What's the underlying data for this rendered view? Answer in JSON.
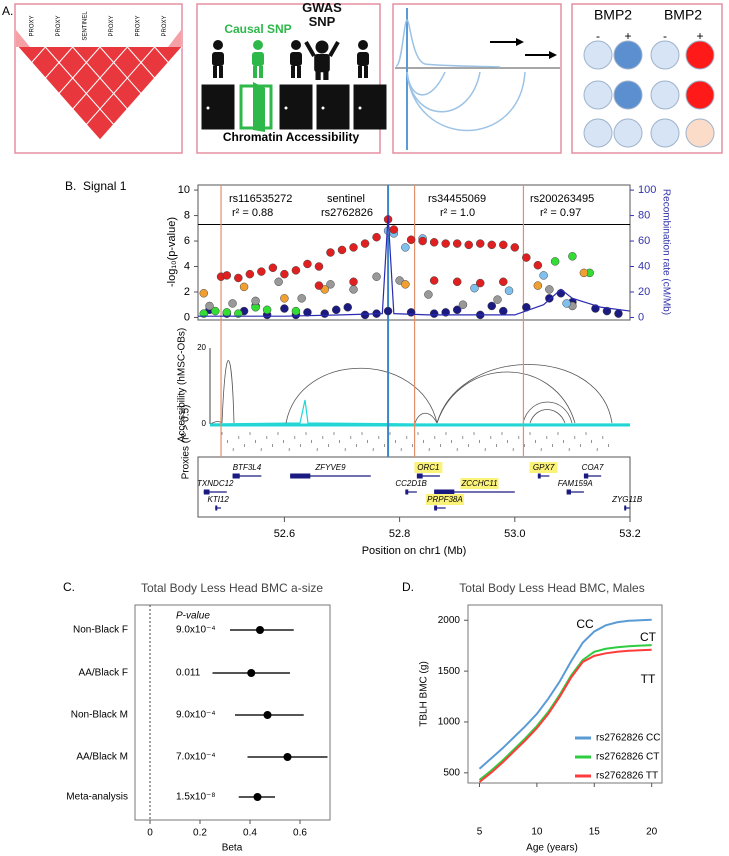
{
  "panel_a": {
    "label": "A.",
    "ld_labels": [
      "PROXY",
      "PROXY",
      "SENTINEL",
      "PROXY",
      "PROXY",
      "PROXY"
    ],
    "causal_snp": "Causal SNP",
    "gwas_snp": "GWAS SNP",
    "chromatin": "Chromatin Accessibility",
    "bmp_labels": [
      "BMP2",
      "BMP2"
    ],
    "signs": [
      "-",
      "+",
      "-",
      "+"
    ]
  },
  "panel_b": {
    "label": "B.",
    "subtitle": "Signal 1"
  },
  "panel_c": {
    "label": "C."
  },
  "panel_d": {
    "label": "D."
  },
  "chart_data": [
    {
      "type": "locus",
      "ylabel": "-log₁₀(p-value)",
      "y2label": "Recombination rate (cM/Mb)",
      "xlabel": "Position on chr1 (Mb)",
      "xlim": [
        52.45,
        53.2
      ],
      "xticks": [
        52.6,
        52.8,
        {
          "value": 53.0,
          "label": "53.0"
        },
        53.2
      ],
      "ylim": [
        -0.2,
        10.4
      ],
      "yticks": [
        0,
        2,
        4,
        6,
        8,
        10
      ],
      "y2lim": [
        -2,
        104
      ],
      "y2ticks": [
        0,
        20,
        40,
        60,
        80,
        100
      ],
      "threshold": 7.3,
      "highlights": [
        {
          "x": 52.49,
          "color": "#e0906a",
          "name": "rs116535272",
          "note": "r² = 0.88"
        },
        {
          "x": 52.78,
          "color": "#3a86c8",
          "name": "rs2762826",
          "note": "sentinel"
        },
        {
          "x": 52.826,
          "color": "#e0906a",
          "name": "rs34455069",
          "note": "r² = 1.0"
        },
        {
          "x": 53.015,
          "color": "#e0906a",
          "name": "rs200263495",
          "note": "r² = 0.97"
        }
      ],
      "series": [
        {
          "color": "#1a1a80",
          "x": [
            52.47,
            52.5,
            52.53,
            52.57,
            52.6,
            52.64,
            52.67,
            52.71,
            52.74,
            52.78,
            52.82,
            52.86,
            52.9,
            52.94,
            52.98,
            53.02,
            53.06,
            53.1,
            53.14,
            53.18,
            52.55,
            52.62,
            52.69,
            52.76,
            52.88,
            52.96,
            53.08,
            53.16
          ],
          "values": [
            0.6,
            0.3,
            0.5,
            0.2,
            0.7,
            0.4,
            0.3,
            0.8,
            0.2,
            0.5,
            0.4,
            0.3,
            0.6,
            0.2,
            0.5,
            0.8,
            1.5,
            1.2,
            0.7,
            0.3,
            0.9,
            0.2,
            0.6,
            0.3,
            0.4,
            0.9,
            1.9,
            0.5
          ]
        },
        {
          "color": "#33dd33",
          "x": [
            52.46,
            52.48,
            52.5,
            52.52,
            52.55,
            52.57,
            52.62,
            53.07,
            53.1,
            53.13
          ],
          "values": [
            0.3,
            0.5,
            0.4,
            0.3,
            0.8,
            0.6,
            0.5,
            4.4,
            4.8,
            3.5
          ]
        },
        {
          "color": "#999999",
          "x": [
            52.47,
            52.51,
            52.55,
            52.59,
            52.63,
            52.68,
            52.72,
            52.76,
            52.8,
            52.85,
            52.91,
            52.97,
            53.06,
            53.1
          ],
          "values": [
            0.9,
            1.1,
            1.3,
            2.8,
            1.5,
            2.6,
            2.2,
            3.2,
            2.9,
            1.8,
            1.0,
            1.4,
            2.2,
            0.9
          ]
        },
        {
          "color": "#80c0ee",
          "x": [
            52.78,
            52.79,
            52.81,
            52.84,
            52.93,
            52.99,
            53.05,
            53.09
          ],
          "values": [
            6.8,
            6.6,
            5.5,
            6.2,
            2.3,
            2.1,
            3.3,
            1.1
          ]
        },
        {
          "color": "#f0a030",
          "x": [
            52.46,
            52.53,
            52.6,
            52.67,
            52.81,
            53.04,
            53.12
          ],
          "values": [
            1.9,
            2.4,
            1.5,
            2.2,
            2.6,
            2.5,
            3.5
          ]
        },
        {
          "color": "#e02020",
          "x": [
            52.49,
            52.5,
            52.52,
            52.54,
            52.56,
            52.58,
            52.6,
            52.62,
            52.64,
            52.66,
            52.68,
            52.7,
            52.72,
            52.74,
            52.76,
            52.78,
            52.79,
            52.82,
            52.84,
            52.86,
            52.88,
            52.9,
            52.92,
            52.94,
            52.96,
            52.98,
            53.0,
            53.02,
            53.04,
            52.86,
            52.9,
            52.94,
            52.98,
            52.72,
            52.66
          ],
          "values": [
            3.2,
            3.3,
            3.1,
            3.4,
            3.6,
            3.9,
            3.4,
            3.7,
            4.2,
            4.0,
            5.1,
            5.3,
            5.5,
            5.8,
            6.3,
            7.7,
            6.9,
            6.1,
            6.0,
            5.9,
            5.8,
            5.8,
            5.7,
            5.8,
            5.7,
            5.7,
            5.5,
            4.7,
            4.1,
            2.9,
            2.8,
            2.7,
            2.8,
            2.8,
            2.5
          ]
        },
        {
          "axis": "y2",
          "color": "#2a2ab0",
          "x": [
            52.45,
            52.6,
            52.7,
            52.77,
            52.78,
            52.79,
            52.85,
            53.0,
            53.05,
            53.08,
            53.1,
            53.15,
            53.2
          ],
          "values": [
            1,
            1,
            2,
            3,
            80,
            3,
            2,
            2,
            10,
            22,
            15,
            8,
            5
          ]
        }
      ],
      "accessibility": {
        "label": "Accessibility (hMSC-OBs)",
        "ylim": [
          0,
          20
        ],
        "yticks": [
          0,
          20
        ]
      },
      "proxies_label": "Proxies (r² > 0.5)",
      "gene_tracks": [
        [
          {
            "name": "BTF3L4",
            "start": 52.51,
            "end": 52.56
          },
          {
            "name": "ZFYVE9",
            "start": 52.61,
            "end": 52.75
          },
          {
            "name": "ORC1",
            "start": 52.83,
            "end": 52.87,
            "highlight": true
          },
          {
            "name": "GPX7",
            "start": 53.04,
            "end": 53.06,
            "highlight": true
          },
          {
            "name": "COA7",
            "start": 53.12,
            "end": 53.15
          }
        ],
        [
          {
            "name": "TXNDC12",
            "start": 52.46,
            "end": 52.5
          },
          {
            "name": "CC2D1B",
            "start": 52.81,
            "end": 52.83
          },
          {
            "name": "ZCCHC11",
            "start": 52.86,
            "end": 53.0,
            "highlight": true
          },
          {
            "name": "FAM159A",
            "start": 53.09,
            "end": 53.12
          }
        ],
        [
          {
            "name": "KTI12",
            "start": 52.48,
            "end": 52.49
          },
          {
            "name": "PRPF38A",
            "start": 52.86,
            "end": 52.88,
            "highlight": true
          },
          {
            "name": "ZYG11B",
            "start": 53.19,
            "end": 53.2
          }
        ]
      ]
    },
    {
      "type": "forest",
      "title": "Total Body Less Head BMC a-size",
      "categories": [
        "Non-Black F",
        "AA/Black F",
        "Non-Black M",
        "AA/Black M",
        "Meta-analysis"
      ],
      "values": [
        0.44,
        0.405,
        0.47,
        0.55,
        0.43
      ],
      "ci_low": [
        0.32,
        0.25,
        0.34,
        0.39,
        0.355
      ],
      "ci_high": [
        0.575,
        0.56,
        0.615,
        0.71,
        0.5
      ],
      "p_header": "P-value",
      "p_values": [
        "9.0x10⁻⁴",
        "0.011",
        "9.0x10⁻⁴",
        "7.0x10⁻⁴",
        "1.5x10⁻⁸"
      ],
      "xlabel": "Beta",
      "xlim": [
        -0.06,
        0.72
      ],
      "xticks": [
        0,
        0.2,
        0.4,
        0.6
      ]
    },
    {
      "type": "line",
      "title": "Total Body Less Head BMC, Males",
      "xlabel": "Age (years)",
      "ylabel": "TBLH BMC (g)",
      "xlim": [
        4,
        20.9
      ],
      "xticks": [
        5,
        10,
        15,
        20
      ],
      "ylim": [
        400,
        2150
      ],
      "yticks": [
        500,
        1000,
        1500,
        2000
      ],
      "x": [
        5,
        6,
        7,
        8,
        9,
        10,
        11,
        12,
        13,
        14,
        15,
        16,
        17,
        18,
        19,
        20
      ],
      "series": [
        {
          "name": "rs2762826 CC",
          "short": "CC",
          "color": "#5b9bd5",
          "values": [
            540,
            640,
            740,
            850,
            960,
            1080,
            1230,
            1400,
            1600,
            1780,
            1890,
            1950,
            1980,
            1995,
            2000,
            2005
          ]
        },
        {
          "name": "rs2762826 CT",
          "short": "CT",
          "color": "#2ecc40",
          "values": [
            430,
            520,
            620,
            730,
            840,
            960,
            1100,
            1270,
            1460,
            1610,
            1690,
            1720,
            1735,
            1745,
            1750,
            1755
          ]
        },
        {
          "name": "rs2762826 TT",
          "short": "TT",
          "color": "#ff3b3b",
          "values": [
            410,
            500,
            600,
            710,
            820,
            940,
            1080,
            1250,
            1440,
            1590,
            1650,
            1675,
            1690,
            1700,
            1705,
            1710
          ]
        }
      ],
      "legend": "lower right"
    }
  ]
}
